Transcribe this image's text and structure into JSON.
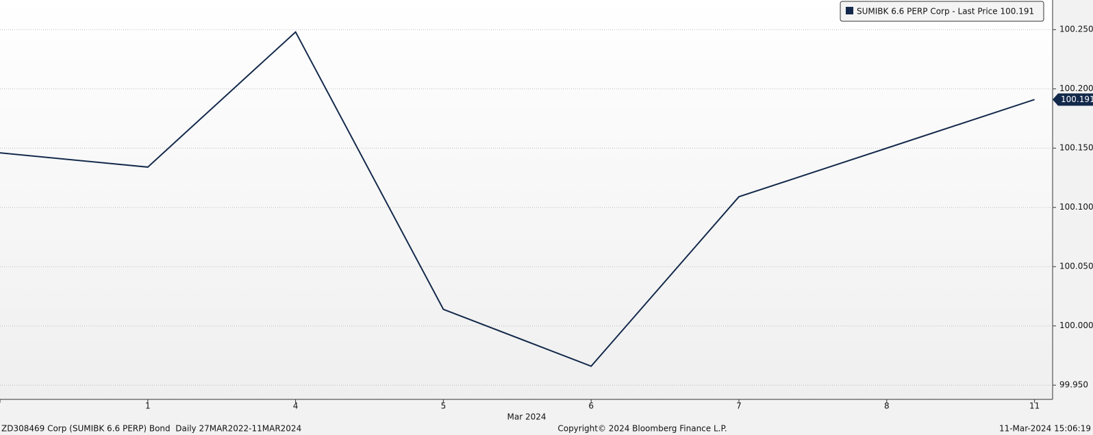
{
  "chart_data": {
    "type": "line",
    "categories": [
      null,
      "1",
      "4",
      "5",
      "6",
      "7",
      "8",
      "11"
    ],
    "x_label": "Mar 2024",
    "series": [
      {
        "name": "SUMIBK 6.6 PERP Corp - Last Price",
        "color": "#13294b",
        "values": [
          100.146,
          100.134,
          100.248,
          100.014,
          99.966,
          100.109,
          100.15,
          100.191
        ]
      }
    ],
    "ylim": [
      99.938,
      100.275
    ],
    "yticks": [
      {
        "value": 99.95,
        "label": "99.950"
      },
      {
        "value": 100.0,
        "label": "100.000"
      },
      {
        "value": 100.05,
        "label": "100.050"
      },
      {
        "value": 100.1,
        "label": "100.100"
      },
      {
        "value": 100.15,
        "label": "100.150"
      },
      {
        "value": 100.2,
        "label": "100.200"
      },
      {
        "value": 100.25,
        "label": "100.250"
      }
    ],
    "grid": true,
    "legend": "top-right",
    "footer": {
      "left": "ZD308469 Corp (SUMIBK 6.6 PERP) Bond  Daily 27MAR2022-11MAR2024",
      "center": "Copyright© 2024 Bloomberg Finance L.P.",
      "right": "11-Mar-2024 15:06:19"
    }
  }
}
